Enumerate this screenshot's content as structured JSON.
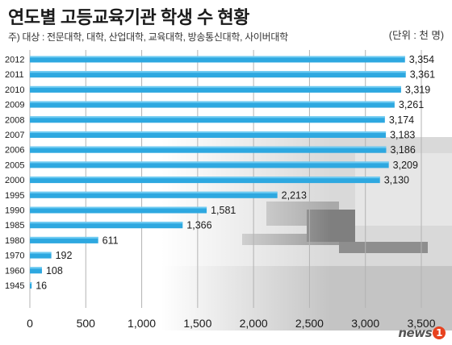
{
  "header": {
    "title": "연도별 고등교육기관 학생 수 현황",
    "note": "주) 대상 : 전문대학, 대학, 산업대학, 교육대학, 방송통신대학, 사이버대학",
    "unit": "(단위 : 천 명)"
  },
  "logo": {
    "text": "news",
    "mark": "1"
  },
  "colors": {
    "bar": "#2ea8e0",
    "bar_top": "#6fcbf2",
    "grid": "#b3b3b3",
    "text": "#1a1a1a"
  },
  "chart_data": {
    "type": "bar",
    "orientation": "horizontal",
    "categories": [
      "2012",
      "2011",
      "2010",
      "2009",
      "2008",
      "2007",
      "2006",
      "2005",
      "2000",
      "1995",
      "1990",
      "1985",
      "1980",
      "1970",
      "1960",
      "1945"
    ],
    "values": [
      3354,
      3361,
      3319,
      3261,
      3174,
      3183,
      3186,
      3209,
      3130,
      2213,
      1581,
      1366,
      611,
      192,
      108,
      16
    ],
    "value_labels": [
      "3,354",
      "3,361",
      "3,319",
      "3,261",
      "3,174",
      "3,183",
      "3,186",
      "3,209",
      "3,130",
      "2,213",
      "1,581",
      "1,366",
      "611",
      "192",
      "108",
      "16"
    ],
    "x_ticks": [
      0,
      500,
      1000,
      1500,
      2000,
      2500,
      3000,
      3500
    ],
    "x_tick_labels": [
      "0",
      "500",
      "1,000",
      "1,500",
      "2,000",
      "2,500",
      "3,000",
      "3,500"
    ],
    "xlim": [
      0,
      3500
    ],
    "grid": true,
    "title": "연도별 고등교육기관 학생 수 현황"
  }
}
